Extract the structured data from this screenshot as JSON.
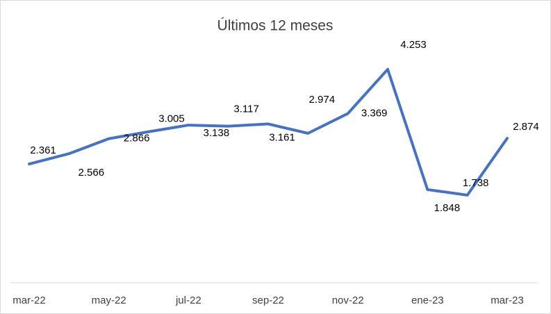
{
  "chart_data": {
    "type": "line",
    "title": "Últimos 12 meses",
    "categories": [
      "mar-22",
      null,
      "may-22",
      null,
      "jul-22",
      null,
      "sep-22",
      null,
      "nov-22",
      null,
      "ene-23",
      null,
      "mar-23"
    ],
    "series": [
      {
        "color": "#4472c4",
        "values": [
          2.361,
          2.566,
          2.866,
          3.005,
          3.138,
          3.117,
          3.161,
          2.974,
          3.369,
          4.253,
          1.848,
          1.738,
          2.874
        ]
      }
    ],
    "ylim": [
      0,
      4.5
    ]
  }
}
